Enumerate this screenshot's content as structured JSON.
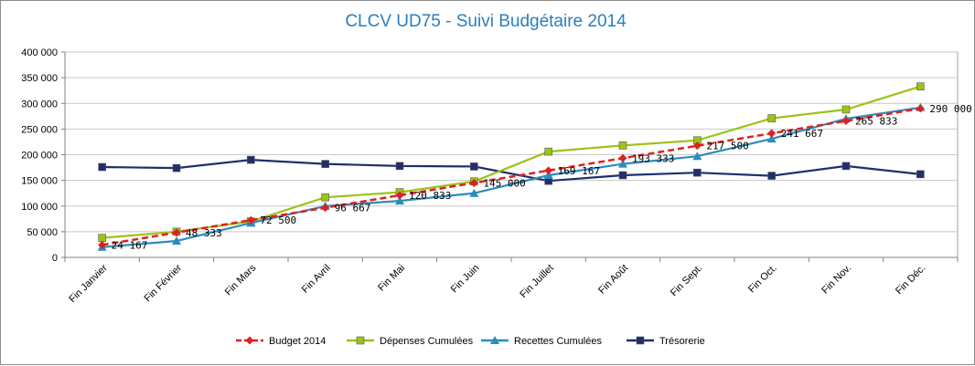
{
  "chart_data": {
    "type": "line",
    "title": "CLCV UD75 - Suivi Budgétaire 2014",
    "xlabel": "",
    "ylabel": "",
    "ylim": [
      0,
      400000
    ],
    "yticks": [
      "0",
      "50 000",
      "100 000",
      "150 000",
      "200 000",
      "250 000",
      "300 000",
      "350 000",
      "400 000"
    ],
    "categories": [
      "Fin Janvier",
      "Fin Février",
      "Fin Mars",
      "Fin Avril",
      "Fin Mai",
      "Fin Juin",
      "Fin Juillet",
      "Fin Août",
      "Fin Sept.",
      "Fin Oct.",
      "Fin Nov.",
      "Fin Déc."
    ],
    "grid": true,
    "legend_position": "bottom",
    "series": [
      {
        "name": "Budget 2014",
        "color": "#e02020",
        "marker": "diamond",
        "dashed": true,
        "values": [
          24167,
          48333,
          72500,
          96667,
          120833,
          145000,
          169167,
          193333,
          217500,
          241667,
          265833,
          290000
        ],
        "labels": [
          "24 167",
          "48 333",
          "72 500",
          "96 667",
          "120 833",
          "145 000",
          "169 167",
          "193 333",
          "217 500",
          "241 667",
          "265 833",
          "290 000"
        ]
      },
      {
        "name": "Dépenses Cumulées",
        "color": "#9cc316",
        "marker": "square",
        "dashed": false,
        "values": [
          38000,
          50000,
          70000,
          117000,
          127000,
          148000,
          206000,
          218000,
          228000,
          271000,
          288000,
          333000
        ]
      },
      {
        "name": "Recettes Cumulées",
        "color": "#2b8cbf",
        "marker": "triangle",
        "dashed": false,
        "values": [
          20000,
          32000,
          67000,
          100000,
          110000,
          125000,
          160000,
          182000,
          197000,
          231000,
          270000,
          292000
        ]
      },
      {
        "name": "Trésorerie",
        "color": "#1f2f6b",
        "marker": "square",
        "dashed": false,
        "values": [
          176000,
          174000,
          190000,
          182000,
          178000,
          177000,
          149000,
          160000,
          165000,
          159000,
          178000,
          162000
        ]
      }
    ]
  }
}
